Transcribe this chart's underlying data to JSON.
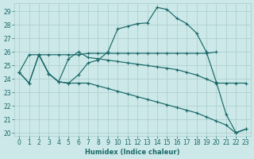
{
  "xlabel": "Humidex (Indice chaleur)",
  "background_color": "#cce8e8",
  "grid_color": "#aacccc",
  "line_color": "#1a6868",
  "xlim": [
    -0.5,
    23.5
  ],
  "ylim": [
    19.8,
    29.6
  ],
  "yticks": [
    20,
    21,
    22,
    23,
    24,
    25,
    26,
    27,
    28,
    29
  ],
  "xticks": [
    0,
    1,
    2,
    3,
    4,
    5,
    6,
    7,
    8,
    9,
    10,
    11,
    12,
    13,
    14,
    15,
    16,
    17,
    18,
    19,
    20,
    21,
    22,
    23
  ],
  "line1_x": [
    0,
    1,
    2,
    3,
    4,
    5,
    6,
    7,
    8,
    9,
    10,
    11,
    12,
    13,
    14,
    15,
    16,
    17,
    18,
    19,
    20,
    21,
    22,
    23
  ],
  "line1_y": [
    24.5,
    23.7,
    25.8,
    24.4,
    23.8,
    23.7,
    24.3,
    25.2,
    25.4,
    26.0,
    27.7,
    27.9,
    28.1,
    28.15,
    29.3,
    29.15,
    28.5,
    28.1,
    27.4,
    26.0,
    23.8,
    21.4,
    20.05,
    20.3
  ],
  "line2_x": [
    2,
    3,
    4,
    5,
    6,
    7,
    8,
    9,
    10,
    11,
    12,
    13,
    14,
    15,
    16,
    17,
    18,
    19,
    20
  ],
  "line2_y": [
    25.8,
    25.8,
    25.8,
    25.8,
    25.8,
    25.9,
    25.9,
    25.9,
    25.9,
    25.9,
    25.9,
    25.9,
    25.9,
    25.9,
    25.9,
    25.9,
    25.9,
    25.9,
    26.0
  ],
  "line3_x": [
    0,
    1,
    2,
    3,
    4,
    5,
    6,
    7,
    8,
    9,
    10,
    11,
    12,
    13,
    14,
    15,
    16,
    17,
    18,
    19,
    20,
    21,
    22,
    23
  ],
  "line3_y": [
    24.5,
    25.8,
    25.8,
    24.4,
    23.8,
    25.5,
    26.0,
    25.6,
    25.5,
    25.4,
    25.3,
    25.2,
    25.1,
    25.0,
    24.9,
    24.8,
    24.7,
    24.5,
    24.3,
    24.0,
    23.7,
    23.7,
    23.7,
    23.7
  ],
  "line4_x": [
    0,
    1,
    2,
    3,
    4,
    5,
    6,
    7,
    8,
    9,
    10,
    11,
    12,
    13,
    14,
    15,
    16,
    17,
    18,
    19,
    20,
    21,
    22,
    23
  ],
  "line4_y": [
    24.5,
    23.7,
    25.8,
    24.4,
    23.8,
    23.7,
    23.7,
    23.7,
    23.5,
    23.3,
    23.1,
    22.9,
    22.7,
    22.5,
    22.3,
    22.1,
    21.9,
    21.7,
    21.5,
    21.2,
    20.9,
    20.6,
    20.0,
    20.3
  ]
}
